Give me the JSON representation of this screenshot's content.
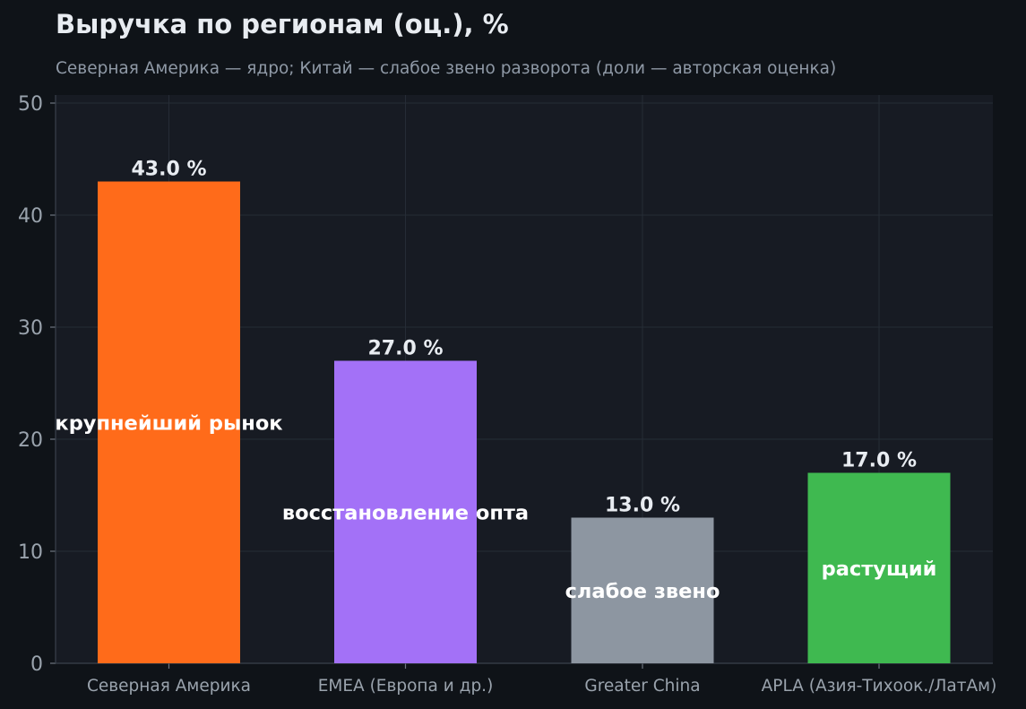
{
  "header": {
    "title": "Выручка по регионам (оц.), %",
    "subtitle": "Северная Америка — ядро; Китай — слабое звено разворота (доли — авторская оценка)"
  },
  "chart_data": {
    "type": "bar",
    "title": "Выручка по регионам (оц.), %",
    "subtitle": "Северная Америка — ядро; Китай — слабое звено разворота (доли — авторская оценка)",
    "xlabel": "",
    "ylabel": "",
    "ylim": [
      0,
      50
    ],
    "yticks": [
      0,
      10,
      20,
      30,
      40,
      50
    ],
    "grid": true,
    "categories": [
      "Северная Америка",
      "EMEA (Европа и др.)",
      "Greater China",
      "APLA (Азия-Тихоок./ЛатАм)"
    ],
    "values": [
      43.0,
      27.0,
      13.0,
      17.0
    ],
    "value_labels": [
      "43.0 %",
      "27.0 %",
      "13.0 %",
      "17.0 %"
    ],
    "annotations": [
      "крупнейший рынок",
      "восстановление опта",
      "слабое звено",
      "растущий"
    ],
    "colors": [
      "#ff6b1a",
      "#a371f7",
      "#8d96a1",
      "#3fb950"
    ],
    "background": "#171b23",
    "page_background": "#0f1318"
  }
}
